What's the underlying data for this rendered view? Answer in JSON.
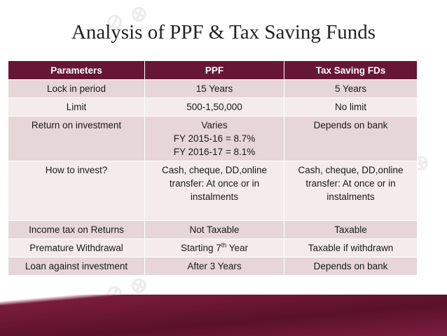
{
  "title": "Analysis of PPF & Tax Saving Funds",
  "table": {
    "headers": [
      "Parameters",
      "PPF",
      "Tax Saving FDs"
    ],
    "rows": [
      {
        "param": "Lock in period",
        "ppf": [
          "15 Years"
        ],
        "fd": [
          "5 Years"
        ]
      },
      {
        "param": "Limit",
        "ppf": [
          "500-1,50,000"
        ],
        "fd": [
          "No limit"
        ]
      },
      {
        "param": "Return on investment",
        "ppf": [
          "Varies",
          "FY 2015-16 = 8.7%",
          "FY 2016-17 = 8.1%"
        ],
        "fd": [
          "Depends on bank"
        ]
      },
      {
        "param": "How to invest?",
        "ppf": [
          "Cash, cheque, DD,online",
          "transfer: At once or in",
          "instalments"
        ],
        "fd": [
          "Cash, cheque, DD,online",
          "transfer: At once or in",
          "instalments"
        ]
      },
      {
        "param": "Income tax on Returns",
        "ppf": [
          "Not Taxable"
        ],
        "fd": [
          "Taxable"
        ]
      },
      {
        "param": "Premature Withdrawal",
        "ppf_prefix": "Starting 7",
        "ppf_sup": "th",
        "ppf_suffix": " Year",
        "fd": [
          "Taxable if withdrawn"
        ]
      },
      {
        "param": "Loan against investment",
        "ppf": [
          "After 3 Years"
        ],
        "fd": [
          "Depends on bank"
        ]
      }
    ]
  },
  "colors": {
    "header_bg": "#661733",
    "row_odd": "#e6d6d9",
    "row_even": "#f3ebec",
    "band": "#5a1129"
  }
}
